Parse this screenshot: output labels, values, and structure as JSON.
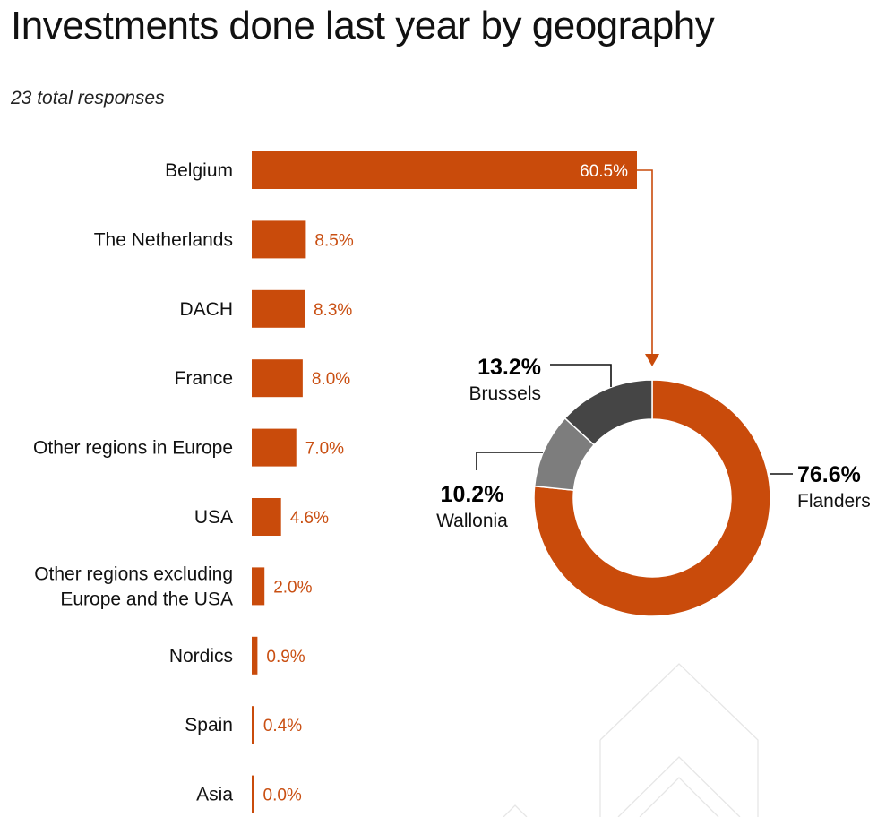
{
  "title": "Investments done last year by geography",
  "subtitle": "23 total responses",
  "colors": {
    "accent": "#c94b0b",
    "label_accent": "#c94f12",
    "dark": "#454545",
    "mid": "#7d7d7d",
    "watermark": "#e6e6e6"
  },
  "chart_data": [
    {
      "type": "bar",
      "orientation": "horizontal",
      "categories": [
        "Belgium",
        "The Netherlands",
        "DACH",
        "France",
        "Other regions in Europe",
        "USA",
        "Other regions excluding Europe and the USA",
        "Nordics",
        "Spain",
        "Asia"
      ],
      "category_lines": [
        [
          "Belgium"
        ],
        [
          "The Netherlands"
        ],
        [
          "DACH"
        ],
        [
          "France"
        ],
        [
          "Other regions in Europe"
        ],
        [
          "USA"
        ],
        [
          "Other regions excluding",
          "Europe and the USA"
        ],
        [
          "Nordics"
        ],
        [
          "Spain"
        ],
        [
          "Asia"
        ]
      ],
      "values": [
        60.5,
        8.5,
        8.3,
        8.0,
        7.0,
        4.6,
        2.0,
        0.9,
        0.4,
        0.0
      ],
      "value_labels": [
        "60.5%",
        "8.5%",
        "8.3%",
        "8.0%",
        "7.0%",
        "4.6%",
        "2.0%",
        "0.9%",
        "0.4%",
        "0.0%"
      ],
      "unit": "%",
      "xlim": [
        0,
        60.5
      ],
      "grid": false
    },
    {
      "type": "pie",
      "variant": "donut",
      "breakdown_of": "Belgium",
      "slices": [
        {
          "label": "Flanders",
          "value": 76.6,
          "pct_label": "76.6%",
          "color": "#c94b0b"
        },
        {
          "label": "Wallonia",
          "value": 10.2,
          "pct_label": "10.2%",
          "color": "#7d7d7d"
        },
        {
          "label": "Brussels",
          "value": 13.2,
          "pct_label": "13.2%",
          "color": "#454545"
        }
      ]
    }
  ]
}
